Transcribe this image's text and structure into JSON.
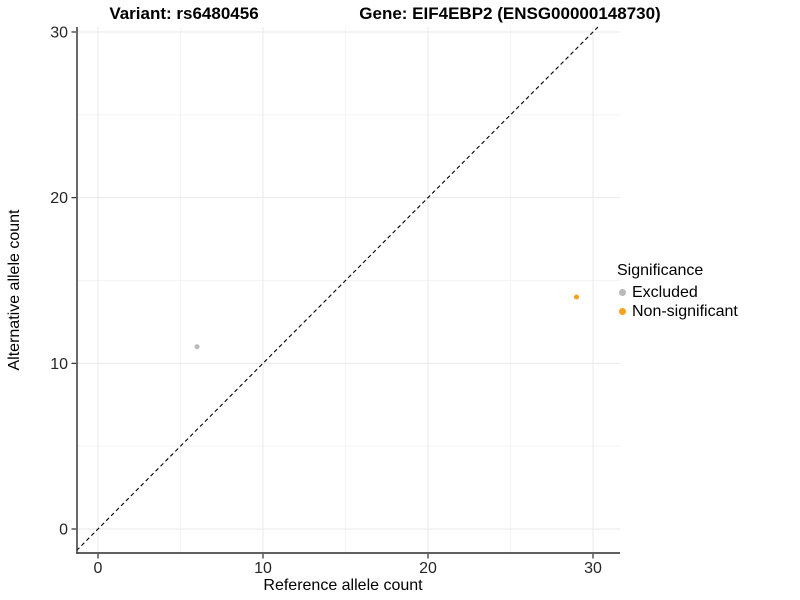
{
  "chart_data": {
    "type": "scatter",
    "title_left": "Variant: rs6480456",
    "title_right": "Gene: EIF4EBP2 (ENSG00000148730)",
    "xlabel": "Reference allele count",
    "ylabel": "Alternative allele count",
    "xlim": [
      -1.3,
      31.6
    ],
    "ylim": [
      -1.5,
      30.3
    ],
    "x_ticks": [
      0,
      10,
      20,
      30
    ],
    "y_ticks": [
      0,
      10,
      20,
      30
    ],
    "x_minor_gridlines": [
      5,
      15,
      25
    ],
    "y_minor_gridlines": [
      5,
      15,
      25
    ],
    "grid": "major+minor",
    "identity_line": {
      "style": "dashed",
      "color": "#000000",
      "from": -1.3,
      "to": 30.3
    },
    "series": [
      {
        "name": "Excluded",
        "color": "#B9B9B9",
        "points": [
          [
            6,
            11
          ]
        ]
      },
      {
        "name": "Non-significant",
        "color": "#F9A11B",
        "points": [
          [
            29,
            14
          ]
        ]
      }
    ],
    "legend": {
      "title": "Significance",
      "position": "right"
    },
    "style": {
      "major_grid_color": "#E9E9E9",
      "minor_grid_color": "#F4F4F4",
      "axis_line_color": "#2b2b2b",
      "tick_label_color": "#262626",
      "point_radius": 2.5
    }
  }
}
